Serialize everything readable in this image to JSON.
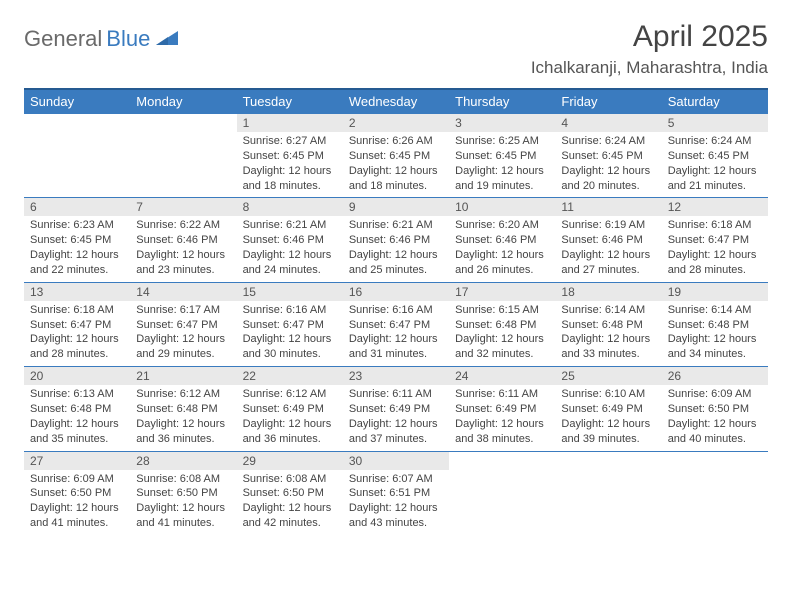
{
  "brand": {
    "general": "General",
    "blue": "Blue"
  },
  "header": {
    "title": "April 2025",
    "location": "Ichalkaranji, Maharashtra, India"
  },
  "colors": {
    "header_bg": "#3a7bbf",
    "header_border_top": "#255a91",
    "daynum_bg": "#e9e9e9",
    "row_divider": "#3a7bbf",
    "text": "#444444",
    "logo_gray": "#6a6a6a",
    "logo_blue": "#3a7bbf"
  },
  "columns": [
    "Sunday",
    "Monday",
    "Tuesday",
    "Wednesday",
    "Thursday",
    "Friday",
    "Saturday"
  ],
  "sun_label": "Sunrise:",
  "set_label": "Sunset:",
  "day_label": "Daylight:",
  "weeks": [
    [
      null,
      null,
      {
        "n": "1",
        "sr": "6:27 AM",
        "ss": "6:45 PM",
        "dl": "12 hours and 18 minutes."
      },
      {
        "n": "2",
        "sr": "6:26 AM",
        "ss": "6:45 PM",
        "dl": "12 hours and 18 minutes."
      },
      {
        "n": "3",
        "sr": "6:25 AM",
        "ss": "6:45 PM",
        "dl": "12 hours and 19 minutes."
      },
      {
        "n": "4",
        "sr": "6:24 AM",
        "ss": "6:45 PM",
        "dl": "12 hours and 20 minutes."
      },
      {
        "n": "5",
        "sr": "6:24 AM",
        "ss": "6:45 PM",
        "dl": "12 hours and 21 minutes."
      }
    ],
    [
      {
        "n": "6",
        "sr": "6:23 AM",
        "ss": "6:45 PM",
        "dl": "12 hours and 22 minutes."
      },
      {
        "n": "7",
        "sr": "6:22 AM",
        "ss": "6:46 PM",
        "dl": "12 hours and 23 minutes."
      },
      {
        "n": "8",
        "sr": "6:21 AM",
        "ss": "6:46 PM",
        "dl": "12 hours and 24 minutes."
      },
      {
        "n": "9",
        "sr": "6:21 AM",
        "ss": "6:46 PM",
        "dl": "12 hours and 25 minutes."
      },
      {
        "n": "10",
        "sr": "6:20 AM",
        "ss": "6:46 PM",
        "dl": "12 hours and 26 minutes."
      },
      {
        "n": "11",
        "sr": "6:19 AM",
        "ss": "6:46 PM",
        "dl": "12 hours and 27 minutes."
      },
      {
        "n": "12",
        "sr": "6:18 AM",
        "ss": "6:47 PM",
        "dl": "12 hours and 28 minutes."
      }
    ],
    [
      {
        "n": "13",
        "sr": "6:18 AM",
        "ss": "6:47 PM",
        "dl": "12 hours and 28 minutes."
      },
      {
        "n": "14",
        "sr": "6:17 AM",
        "ss": "6:47 PM",
        "dl": "12 hours and 29 minutes."
      },
      {
        "n": "15",
        "sr": "6:16 AM",
        "ss": "6:47 PM",
        "dl": "12 hours and 30 minutes."
      },
      {
        "n": "16",
        "sr": "6:16 AM",
        "ss": "6:47 PM",
        "dl": "12 hours and 31 minutes."
      },
      {
        "n": "17",
        "sr": "6:15 AM",
        "ss": "6:48 PM",
        "dl": "12 hours and 32 minutes."
      },
      {
        "n": "18",
        "sr": "6:14 AM",
        "ss": "6:48 PM",
        "dl": "12 hours and 33 minutes."
      },
      {
        "n": "19",
        "sr": "6:14 AM",
        "ss": "6:48 PM",
        "dl": "12 hours and 34 minutes."
      }
    ],
    [
      {
        "n": "20",
        "sr": "6:13 AM",
        "ss": "6:48 PM",
        "dl": "12 hours and 35 minutes."
      },
      {
        "n": "21",
        "sr": "6:12 AM",
        "ss": "6:48 PM",
        "dl": "12 hours and 36 minutes."
      },
      {
        "n": "22",
        "sr": "6:12 AM",
        "ss": "6:49 PM",
        "dl": "12 hours and 36 minutes."
      },
      {
        "n": "23",
        "sr": "6:11 AM",
        "ss": "6:49 PM",
        "dl": "12 hours and 37 minutes."
      },
      {
        "n": "24",
        "sr": "6:11 AM",
        "ss": "6:49 PM",
        "dl": "12 hours and 38 minutes."
      },
      {
        "n": "25",
        "sr": "6:10 AM",
        "ss": "6:49 PM",
        "dl": "12 hours and 39 minutes."
      },
      {
        "n": "26",
        "sr": "6:09 AM",
        "ss": "6:50 PM",
        "dl": "12 hours and 40 minutes."
      }
    ],
    [
      {
        "n": "27",
        "sr": "6:09 AM",
        "ss": "6:50 PM",
        "dl": "12 hours and 41 minutes."
      },
      {
        "n": "28",
        "sr": "6:08 AM",
        "ss": "6:50 PM",
        "dl": "12 hours and 41 minutes."
      },
      {
        "n": "29",
        "sr": "6:08 AM",
        "ss": "6:50 PM",
        "dl": "12 hours and 42 minutes."
      },
      {
        "n": "30",
        "sr": "6:07 AM",
        "ss": "6:51 PM",
        "dl": "12 hours and 43 minutes."
      },
      null,
      null,
      null
    ]
  ]
}
